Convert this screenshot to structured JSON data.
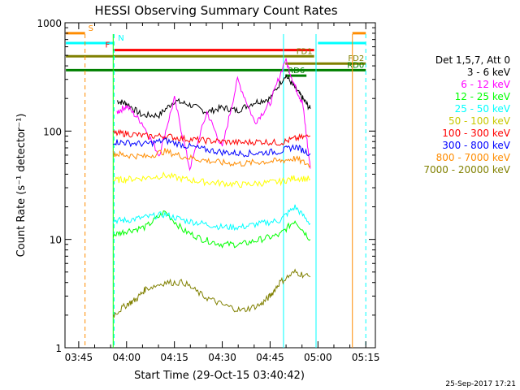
{
  "chart_data": {
    "type": "line",
    "title": "HESSI Observing Summary Count Rates",
    "xlabel": "Start Time (29-Oct-15 03:40:42)",
    "ylabel": "Count Rate (s⁻¹ detector⁻¹)",
    "yscale": "log",
    "ylim": [
      1,
      1000
    ],
    "x_ticks": [
      "03:45",
      "04:00",
      "04:15",
      "04:30",
      "04:45",
      "05:00",
      "05:15"
    ],
    "y_ticks": [
      "1",
      "10",
      "100",
      "1000"
    ],
    "legend_title": "Det 1,5,7, Att 0",
    "legend_placement": "right",
    "footer": "25-Sep-2017 17:21",
    "series": [
      {
        "name": "3 - 6 keV",
        "color": "#000000",
        "x": [
          3.95,
          4.0,
          4.08,
          4.17,
          4.25,
          4.33,
          4.42,
          4.5,
          4.58,
          4.67,
          4.75,
          4.83,
          4.88,
          4.92,
          4.96
        ],
        "values": [
          190,
          180,
          140,
          140,
          190,
          175,
          150,
          165,
          155,
          185,
          200,
          330,
          250,
          200,
          160
        ]
      },
      {
        "name": "6 - 12 keV",
        "color": "#ff00ff",
        "x": [
          3.95,
          4.0,
          4.08,
          4.17,
          4.25,
          4.33,
          4.42,
          4.5,
          4.58,
          4.67,
          4.75,
          4.83,
          4.88,
          4.92,
          4.96
        ],
        "values": [
          150,
          170,
          120,
          60,
          200,
          45,
          150,
          70,
          300,
          120,
          180,
          460,
          260,
          180,
          45
        ]
      },
      {
        "name": "12 - 25 keV",
        "color": "#00ff00",
        "x": [
          3.93,
          4.0,
          4.1,
          4.2,
          4.3,
          4.4,
          4.5,
          4.6,
          4.7,
          4.8,
          4.88,
          4.96
        ],
        "values": [
          11,
          12,
          13,
          18,
          12,
          10,
          9,
          9,
          10,
          11,
          15,
          10
        ]
      },
      {
        "name": "25 - 50 keV",
        "color": "#00ffff",
        "x": [
          3.93,
          4.0,
          4.1,
          4.2,
          4.3,
          4.4,
          4.5,
          4.6,
          4.7,
          4.8,
          4.88,
          4.96
        ],
        "values": [
          15,
          15,
          16,
          17,
          15,
          14,
          13,
          13,
          14,
          15,
          20,
          14
        ]
      },
      {
        "name": "50 - 100 keV",
        "color": "#ffff00",
        "x": [
          3.93,
          4.0,
          4.1,
          4.2,
          4.3,
          4.4,
          4.5,
          4.6,
          4.7,
          4.8,
          4.88,
          4.96
        ],
        "values": [
          35,
          36,
          37,
          39,
          36,
          34,
          33,
          32,
          33,
          34,
          37,
          36
        ]
      },
      {
        "name": "100 - 300 keV",
        "color": "#ff0000",
        "x": [
          3.93,
          4.0,
          4.1,
          4.2,
          4.3,
          4.4,
          4.5,
          4.6,
          4.7,
          4.8,
          4.88,
          4.96
        ],
        "values": [
          95,
          95,
          90,
          90,
          85,
          82,
          80,
          78,
          80,
          78,
          85,
          90
        ]
      },
      {
        "name": "300 - 800 keV",
        "color": "#0000ff",
        "x": [
          3.93,
          4.0,
          4.1,
          4.2,
          4.3,
          4.4,
          4.5,
          4.6,
          4.7,
          4.8,
          4.88,
          4.96
        ],
        "values": [
          80,
          78,
          76,
          82,
          74,
          68,
          64,
          62,
          63,
          65,
          72,
          62
        ]
      },
      {
        "name": "800 - 7000 keV",
        "color": "#ff8c00",
        "x": [
          3.93,
          4.0,
          4.1,
          4.2,
          4.3,
          4.4,
          4.5,
          4.6,
          4.7,
          4.8,
          4.88,
          4.96
        ],
        "values": [
          62,
          60,
          58,
          65,
          58,
          54,
          51,
          50,
          52,
          53,
          56,
          48
        ]
      },
      {
        "name": "7000 - 20000 keV",
        "color": "#808000",
        "x": [
          3.93,
          4.0,
          4.05,
          4.1,
          4.2,
          4.3,
          4.4,
          4.5,
          4.6,
          4.7,
          4.75,
          4.8,
          4.88,
          4.96
        ],
        "values": [
          2,
          2.5,
          2.8,
          3.5,
          4,
          4,
          3,
          2.5,
          2.2,
          2.5,
          3,
          4,
          5,
          4.5
        ]
      }
    ],
    "flag_bars": [
      {
        "label": "S",
        "color": "#ff8c00",
        "y": 800,
        "x_start": 3.683,
        "x_end": 3.783,
        "x_start2": 5.18,
        "x_end2": 5.25
      },
      {
        "label": "N",
        "color": "#00ffff",
        "y": 650,
        "x_start": 3.683,
        "x_end": 3.93,
        "x_start2": 5.0,
        "x_end2": 5.25
      },
      {
        "label": "F",
        "color": "#ff0000",
        "y": 560,
        "x_start": 3.93,
        "x_end": 4.98
      },
      {
        "label": "FD1",
        "color": "#808000",
        "y": 490,
        "x_start": 3.683,
        "x_end": 4.98
      },
      {
        "label": "FD2",
        "color": "#808000",
        "y": 420,
        "x_start": 4.83,
        "x_end": 5.25
      },
      {
        "label": "RD0",
        "color": "#008000",
        "y": 365,
        "x_start": 3.683,
        "x_end": 5.25
      },
      {
        "label": "RD6",
        "color": "#008000",
        "y": 325,
        "x_start": 4.83,
        "x_end": 4.94
      }
    ],
    "vertical_markers": [
      {
        "x": 3.783,
        "color": "#ff8c00",
        "style": "dashed"
      },
      {
        "x": 3.93,
        "color": "#00ff00",
        "style": "solid"
      },
      {
        "x": 3.935,
        "color": "#00ffff",
        "style": "dashed"
      },
      {
        "x": 4.82,
        "color": "#00ffff",
        "style": "solid"
      },
      {
        "x": 4.99,
        "color": "#00ffff",
        "style": "solid"
      },
      {
        "x": 5.18,
        "color": "#ff8c00",
        "style": "solid"
      },
      {
        "x": 5.25,
        "color": "#00ffff",
        "style": "dashed"
      }
    ]
  }
}
